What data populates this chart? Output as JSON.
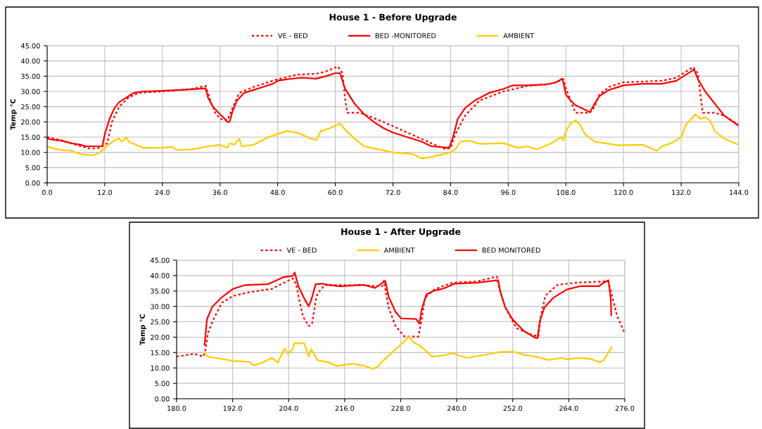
{
  "chart_data": [
    {
      "type": "line",
      "title": "House 1 - Before Upgrade",
      "ylabel": "Temp °C",
      "legend": "top",
      "grid": true,
      "marker": "none",
      "xlim": [
        0,
        144
      ],
      "xticks": [
        {
          "value": 0,
          "label": "0.0"
        },
        {
          "value": 12,
          "label": "12.0"
        },
        {
          "value": 24,
          "label": "24.0"
        },
        {
          "value": 36,
          "label": "36.0"
        },
        {
          "value": 48,
          "label": "48.0"
        },
        {
          "value": 60,
          "label": "60.0"
        },
        {
          "value": 72,
          "label": "72.0"
        },
        {
          "value": 84,
          "label": "84.0"
        },
        {
          "value": 96,
          "label": "96.0"
        },
        {
          "value": 108,
          "label": "108.0"
        },
        {
          "value": 120,
          "label": "120.0"
        },
        {
          "value": 132,
          "label": "132.0"
        },
        {
          "value": 144,
          "label": "144.0"
        }
      ],
      "ylim": [
        0,
        45
      ],
      "yticks": [
        {
          "value": 0,
          "label": "0.00"
        },
        {
          "value": 5,
          "label": "5.00"
        },
        {
          "value": 10,
          "label": "10.00"
        },
        {
          "value": 15,
          "label": "15.00"
        },
        {
          "value": 20,
          "label": "20.00"
        },
        {
          "value": 25,
          "label": "25.00"
        },
        {
          "value": 30,
          "label": "30.00"
        },
        {
          "value": 35,
          "label": "35.00"
        },
        {
          "value": 40,
          "label": "40.00"
        },
        {
          "value": 45,
          "label": "45.00"
        }
      ],
      "series": [
        {
          "name": "VE - BED",
          "color": "#ff0000",
          "line_style": "dotted",
          "x": [
            0,
            3,
            6,
            9,
            11,
            12.5,
            13.5,
            15,
            17,
            19,
            24,
            30,
            33,
            34,
            35,
            36,
            37.5,
            39,
            40,
            43,
            48,
            52,
            56,
            58,
            60.5,
            61.5,
            62,
            62.5,
            65,
            66,
            70,
            75,
            80,
            83,
            84,
            85,
            87,
            90,
            95,
            100,
            105,
            107.5,
            108,
            109,
            110,
            113,
            114,
            115,
            117,
            120,
            128,
            131,
            134.5,
            135.5,
            136,
            136.5,
            139,
            141,
            144
          ],
          "values": [
            15,
            14,
            12.5,
            11.2,
            11.5,
            13,
            20,
            25,
            28,
            29.5,
            30,
            30.8,
            31.8,
            27,
            23,
            21,
            20.5,
            26,
            29.5,
            31.5,
            34,
            35.5,
            35.8,
            36.5,
            38.2,
            36,
            28,
            23,
            23,
            22.5,
            20,
            16.5,
            13,
            11,
            11.5,
            16,
            22,
            27,
            30,
            31.8,
            32.5,
            34,
            31,
            27,
            23,
            23,
            25,
            29,
            31.5,
            33,
            33.5,
            34.5,
            38,
            36,
            29,
            23,
            23,
            22,
            19
          ]
        },
        {
          "name": "BED -MONITORED",
          "color": "#ff0000",
          "line_style": "solid",
          "x": [
            0,
            1,
            3,
            5,
            7,
            8,
            11.5,
            12,
            13,
            14,
            15,
            16,
            17,
            18,
            20,
            24,
            28,
            31,
            33,
            33.5,
            34.5,
            36,
            37,
            37.5,
            38,
            38.5,
            39.5,
            41,
            43,
            45,
            47,
            48,
            50,
            53,
            56,
            58,
            60,
            61,
            62,
            64,
            66,
            68,
            70,
            72,
            75,
            78,
            80,
            83.7,
            84.5,
            85.5,
            87,
            89,
            92,
            95,
            97,
            100,
            104,
            106,
            107.3,
            108,
            109,
            110,
            112,
            113,
            114,
            115,
            117,
            120,
            124,
            128,
            131,
            134,
            134.7,
            135.5,
            137,
            139,
            141,
            144
          ],
          "values": [
            14.5,
            14.2,
            13.8,
            13,
            12.5,
            12,
            12,
            16,
            21,
            24.5,
            26.5,
            27.5,
            28.5,
            29.5,
            30,
            30.2,
            30.5,
            30.8,
            31,
            28,
            25,
            22.5,
            21,
            20,
            20,
            23,
            27,
            29.5,
            30.5,
            31.5,
            32.5,
            33.5,
            34,
            34.5,
            34.2,
            35,
            36,
            36,
            31,
            26,
            22.5,
            20,
            18,
            16.5,
            15,
            13.5,
            12,
            11.5,
            15,
            21,
            24.5,
            27,
            29.5,
            30.8,
            32,
            32,
            32.3,
            33,
            34.2,
            29,
            27,
            25.5,
            24,
            23.2,
            26,
            28.5,
            30.5,
            32,
            32.5,
            32.5,
            33.5,
            36.5,
            37.2,
            34,
            30,
            26,
            22,
            18.7
          ]
        },
        {
          "name": "AMBIENT",
          "color": "#ffcc00",
          "line_style": "solid",
          "x": [
            0,
            2,
            5,
            7,
            9.5,
            11,
            12,
            14,
            15,
            15.5,
            16.5,
            17,
            20,
            24,
            26,
            27,
            30,
            33,
            36,
            37.5,
            38,
            39,
            40,
            40.5,
            43,
            46,
            48,
            50,
            52,
            55,
            56,
            57,
            59,
            61,
            62,
            64,
            66,
            69,
            72,
            76,
            78,
            80,
            84,
            85,
            86,
            88,
            90,
            95,
            98,
            100,
            102,
            105,
            107,
            107.5,
            108,
            109,
            110,
            111,
            112,
            114,
            116,
            119,
            124,
            127,
            128,
            130,
            132,
            133,
            135,
            136,
            137,
            138,
            139,
            141,
            144
          ],
          "values": [
            12,
            11,
            10.5,
            9.5,
            9,
            10,
            11.5,
            14,
            14.5,
            13.5,
            15,
            13.5,
            11.5,
            11.5,
            11.8,
            10.8,
            11,
            11.8,
            12.5,
            11.5,
            13,
            12.5,
            14.5,
            12,
            12.5,
            15,
            16,
            17,
            16.5,
            14.5,
            14,
            17,
            18,
            19.5,
            17.5,
            14.5,
            12,
            11,
            10,
            9.5,
            8,
            8.5,
            10,
            11,
            13.5,
            13.8,
            12.8,
            13,
            11.5,
            12,
            11,
            13,
            15,
            14,
            17,
            19.5,
            20.5,
            19,
            16,
            13.5,
            13,
            12.3,
            12.5,
            10.5,
            12,
            13,
            15,
            19,
            22.5,
            21,
            21.5,
            20.5,
            17,
            14.5,
            12.5
          ]
        }
      ]
    },
    {
      "type": "line",
      "title": "House 1 - After Upgrade",
      "ylabel": "Temp °C",
      "legend": "top",
      "grid": true,
      "marker": "none",
      "xlim": [
        180,
        276
      ],
      "xticks": [
        {
          "value": 180,
          "label": "180.0"
        },
        {
          "value": 192,
          "label": "192.0"
        },
        {
          "value": 204,
          "label": "204.0"
        },
        {
          "value": 216,
          "label": "216.0"
        },
        {
          "value": 228,
          "label": "228.0"
        },
        {
          "value": 240,
          "label": "240.0"
        },
        {
          "value": 252,
          "label": "252.0"
        },
        {
          "value": 264,
          "label": "264.0"
        },
        {
          "value": 276,
          "label": "276.0"
        }
      ],
      "ylim": [
        0,
        45
      ],
      "yticks": [
        {
          "value": 0,
          "label": "0.00"
        },
        {
          "value": 5,
          "label": "5.00"
        },
        {
          "value": 10,
          "label": "10.00"
        },
        {
          "value": 15,
          "label": "15.00"
        },
        {
          "value": 20,
          "label": "20.00"
        },
        {
          "value": 25,
          "label": "25.00"
        },
        {
          "value": 30,
          "label": "30.00"
        },
        {
          "value": 35,
          "label": "35.00"
        },
        {
          "value": 40,
          "label": "40.00"
        },
        {
          "value": 45,
          "label": "45.00"
        }
      ],
      "series": [
        {
          "name": "VE - BED",
          "color": "#ff0000",
          "line_style": "dotted",
          "x": [
            180,
            183.8,
            185.7,
            186.2,
            186.7,
            187.9,
            189.7,
            192.1,
            195.5,
            200.4,
            202.9,
            204.9,
            205.6,
            206.3,
            207.1,
            208.3,
            209,
            209.8,
            210.2,
            211.7,
            220,
            224,
            224.4,
            225.4,
            226.9,
            228.8,
            231.8,
            232.5,
            233.2,
            235.2,
            239.1,
            244.4,
            248.6,
            249.1,
            250.4,
            252.8,
            255.8,
            257.5,
            258,
            259,
            261.6,
            265.6,
            271.5,
            272.5,
            273.5,
            274.4,
            275.9
          ],
          "values": [
            13.7,
            14.6,
            13.7,
            16,
            21.3,
            25.8,
            31.2,
            33.4,
            34.6,
            35.7,
            37.6,
            39.1,
            37.2,
            31.9,
            26.6,
            23.6,
            24.3,
            31.9,
            34.2,
            36.9,
            36.9,
            36.5,
            38.3,
            29.7,
            23.6,
            20.2,
            20.2,
            25.9,
            32.8,
            35.5,
            37.7,
            38.1,
            39.7,
            35.8,
            29.7,
            22.9,
            21,
            20.2,
            26.7,
            33.5,
            37,
            37.7,
            38.1,
            38.1,
            32,
            26.7,
            21.7
          ]
        },
        {
          "name": "AMBIENT",
          "color": "#ffcc00",
          "line_style": "solid",
          "x": [
            186,
            186.7,
            189.7,
            192.1,
            195.5,
            196.5,
            198.5,
            200.4,
            201.7,
            203.1,
            203.9,
            204.9,
            205.3,
            206.3,
            207.3,
            208.3,
            208.8,
            209.8,
            210.2,
            212.7,
            214.2,
            217.6,
            220,
            222,
            223,
            224.4,
            227.4,
            228.8,
            229.8,
            230.8,
            232.3,
            234.7,
            237.2,
            239.1,
            242.1,
            247,
            249.4,
            252.4,
            254.3,
            256.8,
            259.7,
            262.6,
            263.6,
            266.6,
            269,
            270.7,
            271.5,
            273.2
          ],
          "values": [
            14.8,
            13.7,
            12.9,
            12.3,
            12,
            10.8,
            11.8,
            13.3,
            11.8,
            16.3,
            14.6,
            16.3,
            18.2,
            17.9,
            18.2,
            13.7,
            16.1,
            13.7,
            12.5,
            11.8,
            10.6,
            11.4,
            10.8,
            9.7,
            10.3,
            12.6,
            16.8,
            18.7,
            20.2,
            18.3,
            17.1,
            13.7,
            14.1,
            14.8,
            13.3,
            14.5,
            15.2,
            15.2,
            14.3,
            13.7,
            12.6,
            13.3,
            12.8,
            13.3,
            12.8,
            11.8,
            12.6,
            16.8
          ]
        },
        {
          "name": "BED MONITORED",
          "color": "#ff0000",
          "line_style": "solid",
          "x": [
            186,
            186.5,
            187.7,
            189.7,
            192.1,
            194.6,
            199.5,
            200.9,
            202.9,
            204.9,
            205.3,
            206.1,
            207.3,
            208.3,
            208.8,
            209.8,
            211.2,
            212.7,
            215.1,
            220,
            222.5,
            224.7,
            225.4,
            226.9,
            228.1,
            231.3,
            232,
            232.5,
            233.5,
            235.2,
            237.2,
            239.6,
            244.5,
            248.9,
            249.3,
            250.4,
            251.9,
            254.3,
            256.8,
            257.3,
            257.8,
            258.8,
            260.7,
            263.6,
            266.6,
            270.5,
            271.5,
            272.5,
            273,
            273.1
          ],
          "values": [
            17.5,
            25.8,
            30,
            33,
            35.7,
            36.9,
            37.2,
            38.1,
            39.5,
            39.9,
            41,
            36.5,
            32.7,
            30,
            31.9,
            37.2,
            37.4,
            36.9,
            36.5,
            37,
            36,
            38.3,
            33.2,
            28.2,
            26.1,
            25.9,
            24.4,
            29,
            33.9,
            35.1,
            35.8,
            37.4,
            37.7,
            38.5,
            35,
            29.7,
            25.9,
            22.1,
            19.8,
            19.7,
            25.2,
            29.7,
            32.8,
            35.5,
            36.6,
            36.6,
            37.7,
            38.5,
            32.4,
            27.1
          ]
        }
      ]
    }
  ]
}
